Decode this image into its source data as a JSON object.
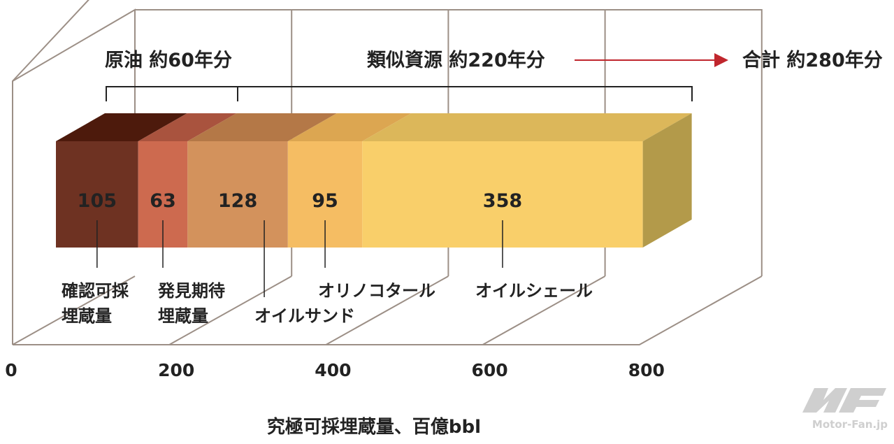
{
  "chart_data": {
    "type": "bar",
    "orientation": "horizontal-stacked-3d",
    "series": [
      {
        "name": "確認可採",
        "name_line2": "埋蔵量",
        "value": 105,
        "color": "#6e3222",
        "top_color": "#4d1a0c",
        "label_offset_x": 0
      },
      {
        "name": "発見期待",
        "name_line2": "埋蔵量",
        "value": 63,
        "color": "#cd6a4f",
        "top_color": "#a9533e",
        "label_offset_x": 0
      },
      {
        "name": "オイルサンド",
        "name_line2": "",
        "value": 128,
        "color": "#d3925c",
        "top_color": "#b47847",
        "label_offset_x": 0
      },
      {
        "name": "オリノコタール",
        "name_line2": "",
        "value": 95,
        "color": "#f5bd63",
        "top_color": "#dca651",
        "label_offset_x": 0
      },
      {
        "name": "オイルシェール",
        "name_line2": "",
        "value": 358,
        "color": "#f9cf6a",
        "top_color": "#dcb75a",
        "label_offset_x": 0
      }
    ],
    "total": 749,
    "xlim": [
      0,
      800
    ],
    "xticks": [
      "0",
      "200",
      "400",
      "600",
      "800"
    ],
    "xlabel": "究極可採埋蔵量、百億bbl",
    "grid": true,
    "annotations": {
      "crude": "原油 約60年分",
      "similar": "類似資源 約220年分",
      "total": "合計 約280年分",
      "total_color": "#c0262d"
    },
    "side_color": "#b39a4a"
  },
  "watermark": "Motor-Fan.jp"
}
